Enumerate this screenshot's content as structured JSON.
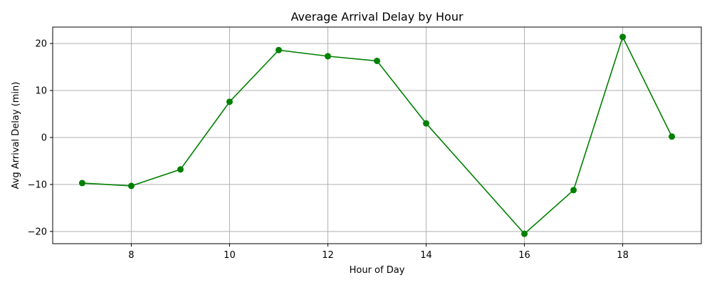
{
  "chart_data": {
    "type": "line",
    "title": "Average Arrival Delay by Hour",
    "xlabel": "Hour of Day",
    "ylabel": "Avg Arrival Delay (min)",
    "xlim": [
      6.4,
      19.6
    ],
    "ylim": [
      -22.6,
      23.5
    ],
    "xticks": [
      8,
      10,
      12,
      14,
      16,
      18
    ],
    "yticks": [
      -20,
      -10,
      0,
      10,
      20
    ],
    "grid": true,
    "color": "#008000",
    "x": [
      7,
      8,
      9,
      10,
      11,
      12,
      13,
      14,
      16,
      17,
      18,
      19
    ],
    "y": [
      -9.7,
      -10.3,
      -6.8,
      7.6,
      18.6,
      17.3,
      16.3,
      3.0,
      -20.5,
      -11.2,
      21.4,
      0.2
    ]
  }
}
